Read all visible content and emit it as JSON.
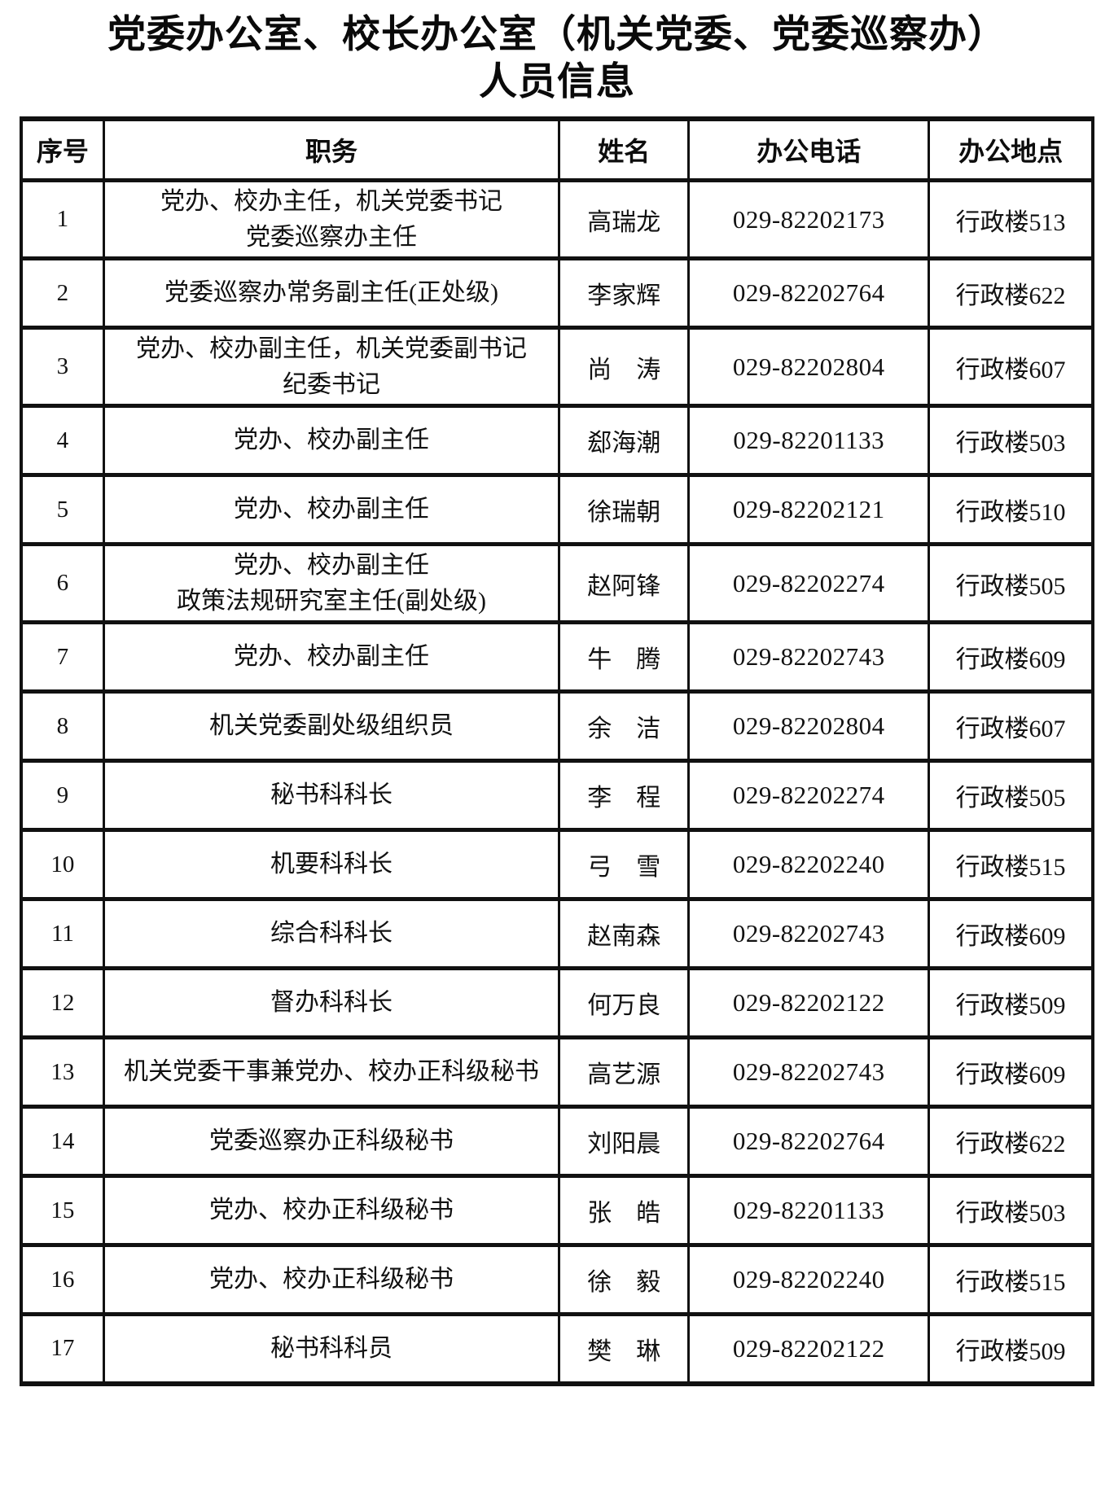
{
  "page": {
    "title_line1": "党委办公室、校长办公室（机关党委、党委巡察办）",
    "title_line2": "人员信息"
  },
  "colors": {
    "background": "#ffffff",
    "text": "#111111",
    "border": "#111111"
  },
  "table": {
    "headers": [
      "序号",
      "职务",
      "姓名",
      "办公电话",
      "办公地点"
    ],
    "rows": [
      {
        "no": "1",
        "position": "党办、校办主任，机关党委书记\n党委巡察办主任",
        "name": "高瑞龙",
        "phone": "029-82202173",
        "location": "行政楼513"
      },
      {
        "no": "2",
        "position": "党委巡察办常务副主任(正处级)",
        "name": "李家辉",
        "phone": "029-82202764",
        "location": "行政楼622"
      },
      {
        "no": "3",
        "position": "党办、校办副主任，机关党委副书记\n纪委书记",
        "name": "尚　涛",
        "phone": "029-82202804",
        "location": "行政楼607"
      },
      {
        "no": "4",
        "position": "党办、校办副主任",
        "name": "郄海潮",
        "phone": "029-82201133",
        "location": "行政楼503"
      },
      {
        "no": "5",
        "position": "党办、校办副主任",
        "name": "徐瑞朝",
        "phone": "029-82202121",
        "location": "行政楼510"
      },
      {
        "no": "6",
        "position": "党办、校办副主任\n政策法规研究室主任(副处级)",
        "name": "赵阿锋",
        "phone": "029-82202274",
        "location": "行政楼505"
      },
      {
        "no": "7",
        "position": "党办、校办副主任",
        "name": "牛　腾",
        "phone": "029-82202743",
        "location": "行政楼609"
      },
      {
        "no": "8",
        "position": "机关党委副处级组织员",
        "name": "余　洁",
        "phone": "029-82202804",
        "location": "行政楼607"
      },
      {
        "no": "9",
        "position": "秘书科科长",
        "name": "李　程",
        "phone": "029-82202274",
        "location": "行政楼505"
      },
      {
        "no": "10",
        "position": "机要科科长",
        "name": "弓　雪",
        "phone": "029-82202240",
        "location": "行政楼515"
      },
      {
        "no": "11",
        "position": "综合科科长",
        "name": "赵南森",
        "phone": "029-82202743",
        "location": "行政楼609"
      },
      {
        "no": "12",
        "position": "督办科科长",
        "name": "何万良",
        "phone": "029-82202122",
        "location": "行政楼509"
      },
      {
        "no": "13",
        "position": "机关党委干事兼党办、校办正科级秘书",
        "name": "高艺源",
        "phone": "029-82202743",
        "location": "行政楼609"
      },
      {
        "no": "14",
        "position": "党委巡察办正科级秘书",
        "name": "刘阳晨",
        "phone": "029-82202764",
        "location": "行政楼622"
      },
      {
        "no": "15",
        "position": "党办、校办正科级秘书",
        "name": "张　皓",
        "phone": "029-82201133",
        "location": "行政楼503"
      },
      {
        "no": "16",
        "position": "党办、校办正科级秘书",
        "name": "徐　毅",
        "phone": "029-82202240",
        "location": "行政楼515"
      },
      {
        "no": "17",
        "position": "秘书科科员",
        "name": "樊　琳",
        "phone": "029-82202122",
        "location": "行政楼509"
      }
    ]
  }
}
